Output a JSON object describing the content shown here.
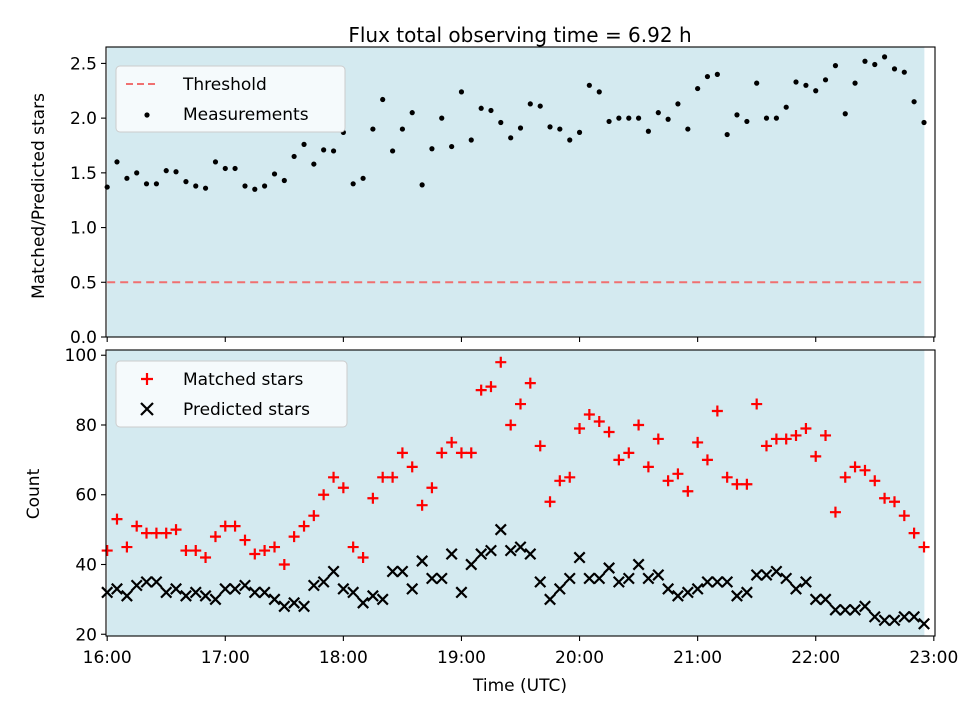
{
  "colors": {
    "shade": "#d4eaf0",
    "threshold": "#f07070",
    "measurement": "#000000",
    "matched": "#ff0000",
    "predicted": "#000000",
    "legend_bg": "#f5fafc"
  },
  "chart_data": [
    {
      "type": "scatter",
      "title": "Flux total observing time = 6.92 h",
      "xlabel": "",
      "ylabel": "Matched/Predicted stars",
      "ylim": [
        0,
        2.65
      ],
      "yticks": [
        "0.0",
        "0.5",
        "1.0",
        "1.5",
        "2.0",
        "2.5"
      ],
      "xlim": [
        15.99,
        23.01
      ],
      "shaded_span": [
        16.0,
        22.92
      ],
      "threshold": 0.5,
      "legend_placement": "upper left",
      "legend": [
        "Threshold",
        "Measurements"
      ],
      "series": [
        {
          "name": "Measurements",
          "x": [
            16.0,
            16.083,
            16.167,
            16.25,
            16.333,
            16.417,
            16.5,
            16.583,
            16.667,
            16.75,
            16.833,
            16.917,
            17.0,
            17.083,
            17.167,
            17.25,
            17.333,
            17.417,
            17.5,
            17.583,
            17.667,
            17.75,
            17.833,
            17.917,
            18.0,
            18.083,
            18.167,
            18.25,
            18.333,
            18.417,
            18.5,
            18.583,
            18.667,
            18.75,
            18.833,
            18.917,
            19.0,
            19.083,
            19.167,
            19.25,
            19.333,
            19.417,
            19.5,
            19.583,
            19.667,
            19.75,
            19.833,
            19.917,
            20.0,
            20.083,
            20.167,
            20.25,
            20.333,
            20.417,
            20.5,
            20.583,
            20.667,
            20.75,
            20.833,
            20.917,
            21.0,
            21.083,
            21.167,
            21.25,
            21.333,
            21.417,
            21.5,
            21.583,
            21.667,
            21.75,
            21.833,
            21.917,
            22.0,
            22.083,
            22.167,
            22.25,
            22.333,
            22.417,
            22.5,
            22.583,
            22.667,
            22.75,
            22.833,
            22.917
          ],
          "y": [
            1.37,
            1.6,
            1.45,
            1.5,
            1.4,
            1.4,
            1.52,
            1.51,
            1.42,
            1.38,
            1.36,
            1.6,
            1.54,
            1.54,
            1.38,
            1.35,
            1.38,
            1.49,
            1.43,
            1.65,
            1.76,
            1.58,
            1.71,
            1.7,
            1.87,
            1.4,
            1.45,
            1.9,
            2.17,
            1.7,
            1.9,
            2.05,
            1.39,
            1.72,
            2.0,
            1.74,
            2.24,
            1.8,
            2.09,
            2.07,
            1.96,
            1.82,
            1.91,
            2.13,
            2.11,
            1.92,
            1.9,
            1.8,
            1.87,
            2.3,
            2.24,
            1.97,
            2.0,
            2.0,
            2.0,
            1.88,
            2.05,
            1.99,
            2.13,
            1.9,
            2.27,
            2.38,
            2.4,
            1.85,
            2.03,
            1.97,
            2.32,
            2.0,
            2.0,
            2.1,
            2.33,
            2.3,
            2.25,
            2.35,
            2.48,
            2.04,
            2.32,
            2.52,
            2.49,
            2.56,
            2.45,
            2.42,
            2.15,
            1.96
          ]
        }
      ]
    },
    {
      "type": "scatter",
      "title": "",
      "xlabel": "Time (UTC)",
      "ylabel": "Count",
      "ylim": [
        19.5,
        101.5
      ],
      "yticks": [
        "20",
        "40",
        "60",
        "80",
        "100"
      ],
      "xlim": [
        15.99,
        23.01
      ],
      "xticks": [
        "16:00",
        "17:00",
        "18:00",
        "19:00",
        "20:00",
        "21:00",
        "22:00",
        "23:00"
      ],
      "shaded_span": [
        16.0,
        22.92
      ],
      "legend_placement": "upper left",
      "legend": [
        "Matched stars",
        "Predicted stars"
      ],
      "series": [
        {
          "name": "Matched stars",
          "x": [
            16.0,
            16.083,
            16.167,
            16.25,
            16.333,
            16.417,
            16.5,
            16.583,
            16.667,
            16.75,
            16.833,
            16.917,
            17.0,
            17.083,
            17.167,
            17.25,
            17.333,
            17.417,
            17.5,
            17.583,
            17.667,
            17.75,
            17.833,
            17.917,
            18.0,
            18.083,
            18.167,
            18.25,
            18.333,
            18.417,
            18.5,
            18.583,
            18.667,
            18.75,
            18.833,
            18.917,
            19.0,
            19.083,
            19.167,
            19.25,
            19.333,
            19.417,
            19.5,
            19.583,
            19.667,
            19.75,
            19.833,
            19.917,
            20.0,
            20.083,
            20.167,
            20.25,
            20.333,
            20.417,
            20.5,
            20.583,
            20.667,
            20.75,
            20.833,
            20.917,
            21.0,
            21.083,
            21.167,
            21.25,
            21.333,
            21.417,
            21.5,
            21.583,
            21.667,
            21.75,
            21.833,
            21.917,
            22.0,
            22.083,
            22.167,
            22.25,
            22.333,
            22.417,
            22.5,
            22.583,
            22.667,
            22.75,
            22.833,
            22.917
          ],
          "y": [
            44,
            53,
            45,
            51,
            49,
            49,
            49,
            50,
            44,
            44,
            42,
            48,
            51,
            51,
            47,
            43,
            44,
            45,
            40,
            48,
            51,
            54,
            60,
            65,
            62,
            45,
            42,
            59,
            65,
            65,
            72,
            68,
            57,
            62,
            72,
            75,
            72,
            72,
            90,
            91,
            98,
            80,
            86,
            92,
            74,
            58,
            64,
            65,
            79,
            83,
            81,
            78,
            70,
            72,
            80,
            68,
            76,
            64,
            66,
            61,
            75,
            70,
            84,
            65,
            63,
            63,
            86,
            74,
            76,
            76,
            77,
            79,
            71,
            77,
            55,
            65,
            68,
            67,
            64,
            59,
            58,
            54,
            49,
            45
          ]
        },
        {
          "name": "Predicted stars",
          "x": [
            16.0,
            16.083,
            16.167,
            16.25,
            16.333,
            16.417,
            16.5,
            16.583,
            16.667,
            16.75,
            16.833,
            16.917,
            17.0,
            17.083,
            17.167,
            17.25,
            17.333,
            17.417,
            17.5,
            17.583,
            17.667,
            17.75,
            17.833,
            17.917,
            18.0,
            18.083,
            18.167,
            18.25,
            18.333,
            18.417,
            18.5,
            18.583,
            18.667,
            18.75,
            18.833,
            18.917,
            19.0,
            19.083,
            19.167,
            19.25,
            19.333,
            19.417,
            19.5,
            19.583,
            19.667,
            19.75,
            19.833,
            19.917,
            20.0,
            20.083,
            20.167,
            20.25,
            20.333,
            20.417,
            20.5,
            20.583,
            20.667,
            20.75,
            20.833,
            20.917,
            21.0,
            21.083,
            21.167,
            21.25,
            21.333,
            21.417,
            21.5,
            21.583,
            21.667,
            21.75,
            21.833,
            21.917,
            22.0,
            22.083,
            22.167,
            22.25,
            22.333,
            22.417,
            22.5,
            22.583,
            22.667,
            22.75,
            22.833,
            22.917
          ],
          "y": [
            32,
            33,
            31,
            34,
            35,
            35,
            32,
            33,
            31,
            32,
            31,
            30,
            33,
            33,
            34,
            32,
            32,
            30,
            28,
            29,
            28,
            34,
            35,
            38,
            33,
            32,
            29,
            31,
            30,
            38,
            38,
            33,
            41,
            36,
            36,
            43,
            32,
            40,
            43,
            44,
            50,
            44,
            45,
            43,
            35,
            30,
            33,
            36,
            42,
            36,
            36,
            39,
            35,
            36,
            40,
            36,
            37,
            33,
            31,
            32,
            33,
            35,
            35,
            35,
            31,
            32,
            37,
            37,
            38,
            36,
            33,
            35,
            30,
            30,
            27,
            27,
            27,
            28,
            25,
            24,
            24,
            25,
            25,
            23
          ]
        }
      ]
    }
  ]
}
